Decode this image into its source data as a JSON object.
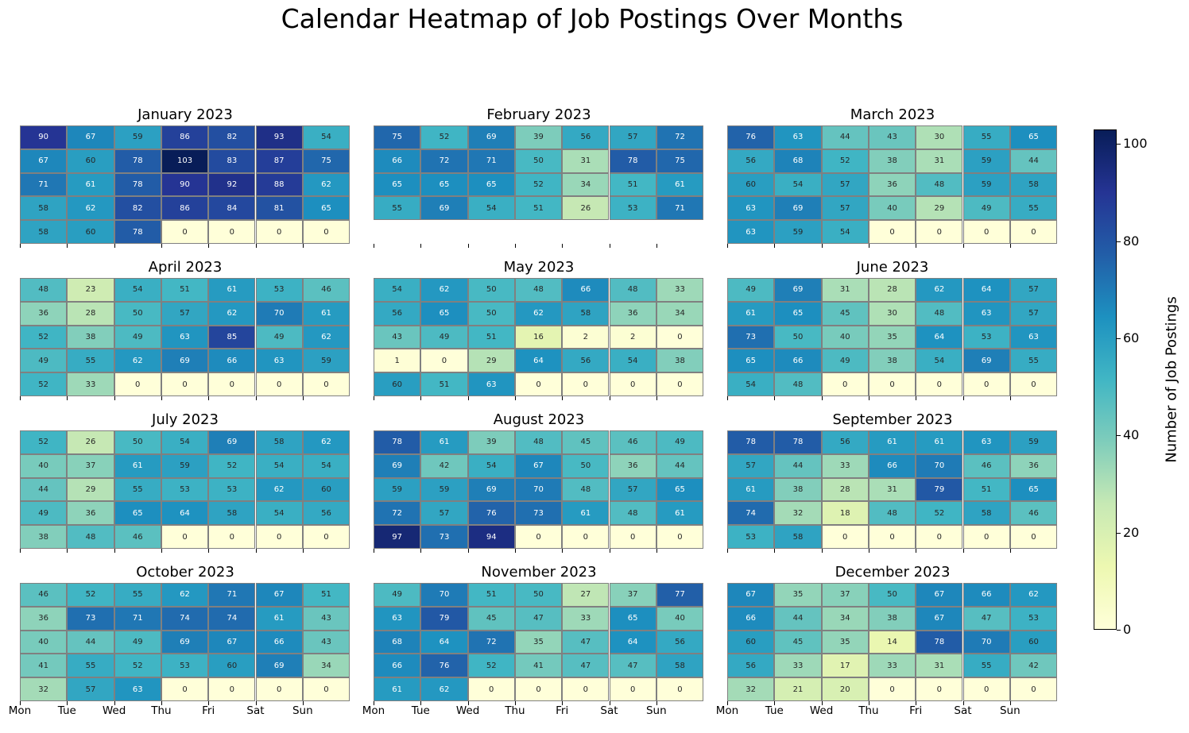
{
  "title": "Calendar Heatmap of Job Postings Over Months",
  "chart_data": {
    "type": "heatmap",
    "colormap": "YlGnBu",
    "value_range": [
      0,
      103
    ],
    "columns": [
      "Mon",
      "Tue",
      "Wed",
      "Thu",
      "Fri",
      "Sat",
      "Sun"
    ],
    "colorbar": {
      "label": "Number of Job Postings",
      "ticks": [
        "0",
        "20",
        "40",
        "60",
        "80",
        "100"
      ]
    },
    "months": [
      {
        "title": "January 2023",
        "rows": [
          [
            90,
            67,
            59,
            86,
            82,
            93,
            54
          ],
          [
            67,
            60,
            78,
            103,
            83,
            87,
            75
          ],
          [
            71,
            61,
            78,
            90,
            92,
            88,
            62
          ],
          [
            58,
            62,
            82,
            86,
            84,
            81,
            65
          ],
          [
            58,
            60,
            78,
            0,
            0,
            0,
            0
          ]
        ]
      },
      {
        "title": "February 2023",
        "rows": [
          [
            75,
            52,
            69,
            39,
            56,
            57,
            72
          ],
          [
            66,
            72,
            71,
            50,
            31,
            78,
            75
          ],
          [
            65,
            65,
            65,
            52,
            34,
            51,
            61
          ],
          [
            55,
            69,
            54,
            51,
            26,
            53,
            71
          ]
        ]
      },
      {
        "title": "March 2023",
        "rows": [
          [
            76,
            63,
            44,
            43,
            30,
            55,
            65
          ],
          [
            56,
            68,
            52,
            38,
            31,
            59,
            44
          ],
          [
            60,
            54,
            57,
            36,
            48,
            59,
            58
          ],
          [
            63,
            69,
            57,
            40,
            29,
            49,
            55
          ],
          [
            63,
            59,
            54,
            0,
            0,
            0,
            0
          ]
        ]
      },
      {
        "title": "April 2023",
        "rows": [
          [
            48,
            23,
            54,
            51,
            61,
            53,
            46
          ],
          [
            36,
            28,
            50,
            57,
            62,
            70,
            61
          ],
          [
            52,
            38,
            49,
            63,
            85,
            49,
            62
          ],
          [
            49,
            55,
            62,
            69,
            66,
            63,
            59
          ],
          [
            52,
            33,
            0,
            0,
            0,
            0,
            0
          ]
        ]
      },
      {
        "title": "May 2023",
        "rows": [
          [
            54,
            62,
            50,
            48,
            66,
            48,
            33
          ],
          [
            56,
            65,
            50,
            62,
            58,
            36,
            34
          ],
          [
            43,
            49,
            51,
            16,
            2,
            2,
            0
          ],
          [
            1,
            0,
            29,
            64,
            56,
            54,
            38
          ],
          [
            60,
            51,
            63,
            0,
            0,
            0,
            0
          ]
        ]
      },
      {
        "title": "June 2023",
        "rows": [
          [
            49,
            69,
            31,
            28,
            62,
            64,
            57
          ],
          [
            61,
            65,
            45,
            30,
            48,
            63,
            57
          ],
          [
            73,
            50,
            40,
            35,
            64,
            53,
            63
          ],
          [
            65,
            66,
            49,
            38,
            54,
            69,
            55
          ],
          [
            54,
            48,
            0,
            0,
            0,
            0,
            0
          ]
        ]
      },
      {
        "title": "July 2023",
        "rows": [
          [
            52,
            26,
            50,
            54,
            69,
            58,
            62
          ],
          [
            40,
            37,
            61,
            59,
            52,
            54,
            54
          ],
          [
            44,
            29,
            55,
            53,
            53,
            62,
            60
          ],
          [
            49,
            36,
            65,
            64,
            58,
            54,
            56
          ],
          [
            38,
            48,
            46,
            0,
            0,
            0,
            0
          ]
        ]
      },
      {
        "title": "August 2023",
        "rows": [
          [
            78,
            61,
            39,
            48,
            45,
            46,
            49
          ],
          [
            69,
            42,
            54,
            67,
            50,
            36,
            44
          ],
          [
            59,
            59,
            69,
            70,
            48,
            57,
            65
          ],
          [
            72,
            57,
            76,
            73,
            61,
            48,
            61
          ],
          [
            97,
            73,
            94,
            0,
            0,
            0,
            0
          ]
        ]
      },
      {
        "title": "September 2023",
        "rows": [
          [
            78,
            78,
            56,
            61,
            61,
            63,
            59
          ],
          [
            57,
            44,
            33,
            66,
            70,
            46,
            36
          ],
          [
            61,
            38,
            28,
            31,
            79,
            51,
            65
          ],
          [
            74,
            32,
            18,
            48,
            52,
            58,
            46
          ],
          [
            53,
            58,
            0,
            0,
            0,
            0,
            0
          ]
        ]
      },
      {
        "title": "October 2023",
        "rows": [
          [
            46,
            52,
            55,
            62,
            71,
            67,
            51
          ],
          [
            36,
            73,
            71,
            74,
            74,
            61,
            43
          ],
          [
            40,
            44,
            49,
            69,
            67,
            66,
            43
          ],
          [
            41,
            55,
            52,
            53,
            60,
            69,
            34
          ],
          [
            32,
            57,
            63,
            0,
            0,
            0,
            0
          ]
        ]
      },
      {
        "title": "November 2023",
        "rows": [
          [
            49,
            70,
            51,
            50,
            27,
            37,
            77
          ],
          [
            63,
            79,
            45,
            47,
            33,
            65,
            40
          ],
          [
            68,
            64,
            72,
            35,
            47,
            64,
            56
          ],
          [
            66,
            76,
            52,
            41,
            47,
            47,
            58
          ],
          [
            61,
            62,
            0,
            0,
            0,
            0,
            0
          ]
        ]
      },
      {
        "title": "December 2023",
        "rows": [
          [
            67,
            35,
            37,
            50,
            67,
            66,
            62
          ],
          [
            66,
            44,
            34,
            38,
            67,
            47,
            53
          ],
          [
            60,
            45,
            35,
            14,
            78,
            70,
            60
          ],
          [
            56,
            33,
            17,
            33,
            31,
            55,
            42
          ],
          [
            32,
            21,
            20,
            0,
            0,
            0,
            0
          ]
        ]
      }
    ]
  }
}
